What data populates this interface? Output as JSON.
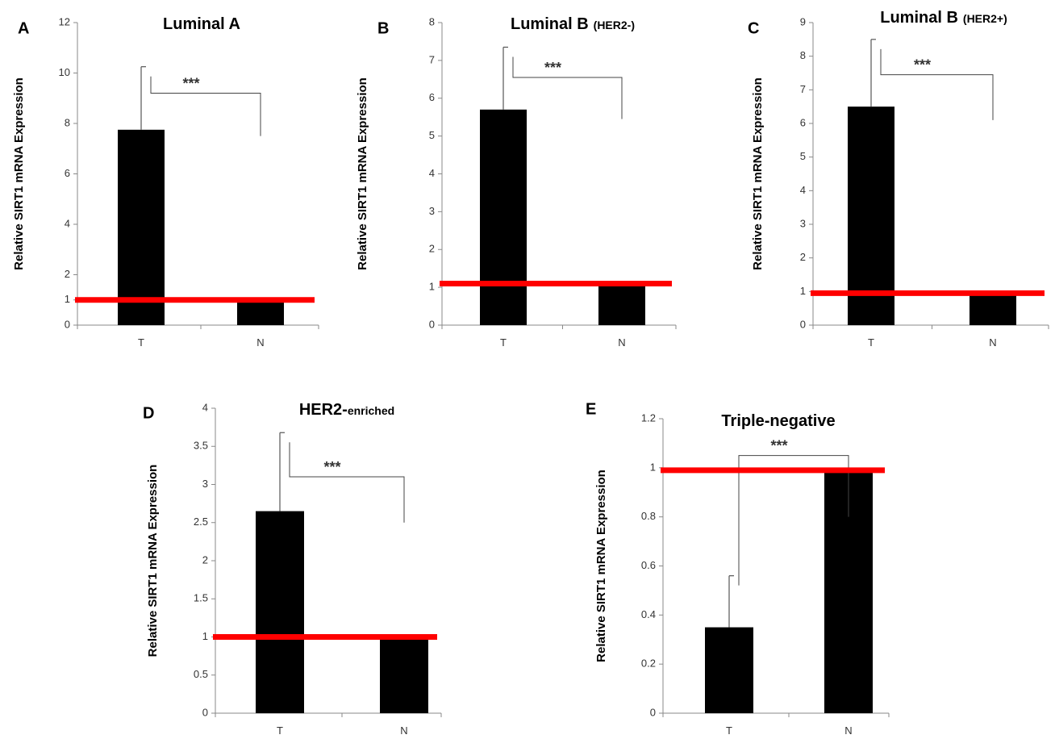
{
  "colors": {
    "bar": "#000000",
    "reference_line": "#ff0000",
    "axis": "#888888",
    "error": "#555555"
  },
  "chart_data": [
    {
      "panel": "A",
      "type": "bar",
      "title": "Luminal A",
      "title_sub": "",
      "ylabel": "Relative SIRT1 mRNA Expression",
      "categories": [
        "T",
        "N"
      ],
      "values": [
        7.75,
        0.95
      ],
      "error": [
        2.5,
        0
      ],
      "yticks": [
        0,
        1,
        2,
        4,
        6,
        8,
        10,
        12
      ],
      "ylim": [
        0,
        12
      ],
      "reference_line": 1,
      "significance": "***",
      "bracket": [
        9.2,
        7.5
      ]
    },
    {
      "panel": "B",
      "type": "bar",
      "title": "Luminal B",
      "title_sub": "(HER2-)",
      "ylabel": "Relative SIRT1 mRNA Expression",
      "categories": [
        "T",
        "N"
      ],
      "values": [
        5.7,
        1.05
      ],
      "error": [
        1.65,
        0
      ],
      "yticks": [
        0,
        1,
        2,
        3,
        4,
        5,
        6,
        7,
        8
      ],
      "ylim": [
        0,
        8
      ],
      "reference_line": 1.1,
      "significance": "***",
      "bracket": [
        6.55,
        5.45
      ]
    },
    {
      "panel": "C",
      "type": "bar",
      "title": "Luminal B",
      "title_sub": "(HER2+)",
      "ylabel": "Relative SIRT1 mRNA Expression",
      "categories": [
        "T",
        "N"
      ],
      "values": [
        6.5,
        0.9
      ],
      "error": [
        2.0,
        0
      ],
      "yticks": [
        0,
        1,
        2,
        3,
        4,
        5,
        6,
        7,
        8,
        9
      ],
      "ylim": [
        0,
        9
      ],
      "reference_line": 0.95,
      "significance": "***",
      "bracket": [
        7.45,
        6.1
      ]
    },
    {
      "panel": "D",
      "type": "bar",
      "title": "HER2-",
      "title_sub": "enriched",
      "ylabel": "Relative SIRT1 mRNA Expression",
      "categories": [
        "T",
        "N"
      ],
      "values": [
        2.65,
        0.98
      ],
      "error": [
        1.03,
        0
      ],
      "yticks": [
        0,
        0.5,
        1,
        1.5,
        2,
        2.5,
        3,
        3.5,
        4
      ],
      "ylim": [
        0,
        4
      ],
      "reference_line": 1,
      "significance": "***",
      "bracket": [
        3.1,
        2.5
      ]
    },
    {
      "panel": "E",
      "type": "bar",
      "title": "Triple-negative",
      "title_sub": "",
      "ylabel": "Relative SIRT1 mRNA Expression",
      "categories": [
        "T",
        "N"
      ],
      "values": [
        0.35,
        0.98
      ],
      "error": [
        0.21,
        0
      ],
      "yticks": [
        0,
        0.2,
        0.4,
        0.6,
        0.8,
        1,
        1.2
      ],
      "ylim": [
        0,
        1.2
      ],
      "reference_line": 0.99,
      "significance": "***",
      "bracket": [
        1.05,
        0.8
      ],
      "ytick_labels": [
        "0",
        "0.2",
        "0.4",
        "0.6",
        "0.8",
        "1",
        "1.2"
      ]
    }
  ]
}
